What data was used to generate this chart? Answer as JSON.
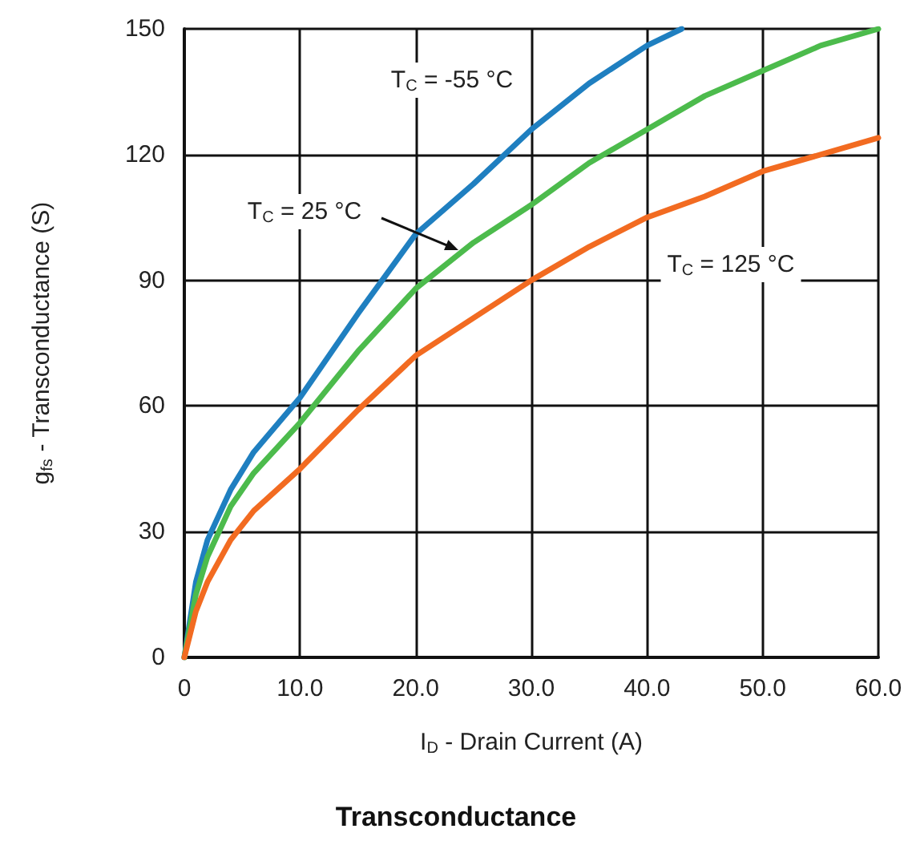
{
  "chart_data": {
    "type": "line",
    "title": "Transconductance",
    "xlabel": "I$_{D}$ - Drain Current (A)",
    "ylabel": "g$_{fs}$ - Transconductance (S)",
    "xlim": [
      0,
      60
    ],
    "xticks": [
      0,
      {
        "value": 10,
        "label": "10.0"
      },
      {
        "value": 20,
        "label": "20.0"
      },
      {
        "value": 30,
        "label": "30.0"
      },
      {
        "value": 40,
        "label": "40.0"
      },
      {
        "value": 50,
        "label": "50.0"
      },
      {
        "value": 60,
        "label": "60.0"
      }
    ],
    "ylim": [
      0,
      150
    ],
    "yticks": [
      0,
      30,
      60,
      90,
      120,
      150
    ],
    "grid": true,
    "marker": "none",
    "line_style": "solid",
    "series": [
      {
        "color": "#1f7fc0",
        "x": [
          0,
          1,
          2,
          4,
          6,
          10,
          15,
          20,
          25,
          30,
          35,
          40,
          43
        ],
        "values": [
          0,
          18,
          28,
          40,
          49,
          62,
          82,
          101,
          113,
          126,
          137,
          146,
          150
        ]
      },
      {
        "color": "#4cbb4c",
        "x": [
          0,
          1,
          2,
          4,
          6,
          10,
          15,
          20,
          25,
          30,
          35,
          40,
          45,
          50,
          55,
          60
        ],
        "values": [
          0,
          15,
          24,
          36,
          44,
          56,
          73,
          88,
          99,
          108,
          118,
          126,
          134,
          140,
          146,
          150
        ]
      },
      {
        "color": "#f26b21",
        "x": [
          0,
          1,
          2,
          4,
          6,
          10,
          15,
          20,
          25,
          30,
          35,
          40,
          45,
          50,
          55,
          60
        ],
        "values": [
          0,
          11,
          18,
          28,
          35,
          45,
          59,
          72,
          81,
          90,
          98,
          105,
          110,
          116,
          120,
          124
        ]
      }
    ],
    "annotations": [
      "T$_{C}$ = -55 °C",
      "T$_{C}$ = 25 °C",
      "T$_{C}$ = 125 °C"
    ]
  }
}
